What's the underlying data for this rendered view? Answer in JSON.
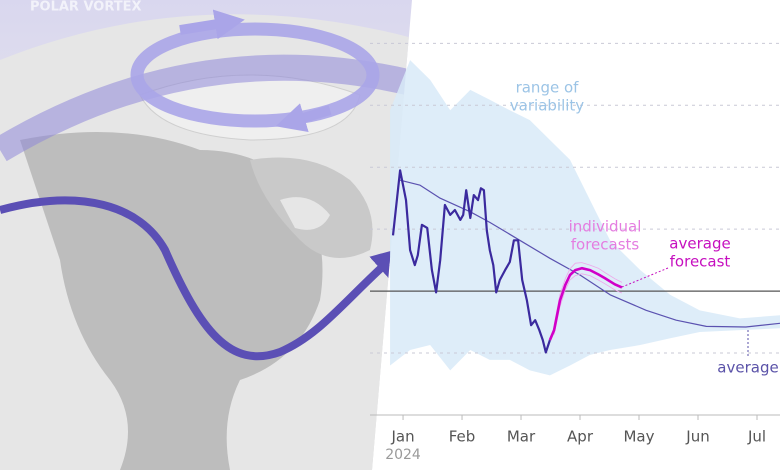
{
  "illustration": {
    "label": "POLAR VORTEX"
  },
  "chart_data": {
    "type": "line",
    "xlim": [
      -0.56,
      6.39
    ],
    "ylim": [
      -2.0,
      4.7
    ],
    "xticks": [
      {
        "value": 0,
        "label": "Jan"
      },
      {
        "value": 1,
        "label": "Feb"
      },
      {
        "value": 2,
        "label": "Mar"
      },
      {
        "value": 3,
        "label": "Apr"
      },
      {
        "value": 4,
        "label": "May"
      },
      {
        "value": 5,
        "label": "Jun"
      },
      {
        "value": 6,
        "label": "Jul"
      }
    ],
    "x_sublabel": "2024",
    "yticks": [
      -1,
      0,
      1,
      2,
      3,
      4
    ],
    "grid": true,
    "baseline": 0,
    "band": {
      "color": "#d8eaf8",
      "x": [
        -0.22,
        0.12,
        0.46,
        0.8,
        1.14,
        1.47,
        1.81,
        2.15,
        2.49,
        2.83,
        3.17,
        3.51,
        4.02,
        4.53,
        5.03,
        5.71,
        6.39
      ],
      "upper": [
        2.92,
        3.73,
        3.41,
        2.92,
        3.25,
        3.09,
        2.92,
        2.76,
        2.44,
        2.12,
        1.47,
        0.82,
        0.34,
        -0.06,
        -0.31,
        -0.44,
        -0.39
      ],
      "lower": [
        -1.2,
        -0.95,
        -0.87,
        -1.28,
        -0.95,
        -1.11,
        -1.11,
        -1.28,
        -1.36,
        -1.2,
        -1.03,
        -0.95,
        -0.87,
        -0.76,
        -0.66,
        -0.63,
        -0.6
      ]
    },
    "series": [
      {
        "color": "#5b52b0",
        "x": [
          -0.05,
          0.29,
          0.63,
          1.14,
          1.47,
          1.98,
          2.49,
          3.0,
          3.51,
          4.12,
          4.63,
          5.14,
          5.81,
          6.39
        ],
        "values": [
          1.79,
          1.71,
          1.5,
          1.28,
          1.11,
          0.82,
          0.53,
          0.26,
          -0.06,
          -0.31,
          -0.47,
          -0.57,
          -0.58,
          -0.52
        ]
      },
      {
        "color": "#eea6ea",
        "x": [
          2.56,
          2.66,
          2.75,
          2.83,
          2.92,
          3.03,
          3.17,
          3.31,
          3.42,
          3.59,
          3.71
        ],
        "values": [
          -0.55,
          -0.05,
          0.2,
          0.36,
          0.45,
          0.46,
          0.42,
          0.37,
          0.3,
          0.2,
          0.14
        ]
      },
      {
        "color": "#eea6ea",
        "x": [
          2.56,
          2.66,
          2.75,
          2.83,
          2.92,
          3.03,
          3.17,
          3.31,
          3.42,
          3.59,
          3.71
        ],
        "values": [
          -0.7,
          -0.25,
          0.02,
          0.18,
          0.25,
          0.28,
          0.25,
          0.18,
          0.12,
          0.02,
          -0.03
        ]
      },
      {
        "color": "#3b2a9e",
        "x": [
          -0.17,
          -0.05,
          0.05,
          0.12,
          0.2,
          0.25,
          0.32,
          0.41,
          0.49,
          0.56,
          0.63,
          0.71,
          0.8,
          0.88,
          0.97,
          1.02,
          1.07,
          1.14,
          1.2,
          1.27,
          1.32,
          1.37,
          1.42,
          1.47,
          1.53,
          1.58,
          1.64,
          1.73,
          1.81,
          1.88,
          1.95,
          2.02,
          2.1,
          2.17,
          2.24,
          2.31,
          2.37,
          2.42,
          2.49
        ],
        "values": [
          0.9,
          1.95,
          1.47,
          0.66,
          0.42,
          0.58,
          1.07,
          1.02,
          0.34,
          -0.02,
          0.5,
          1.39,
          1.23,
          1.31,
          1.15,
          1.23,
          1.63,
          1.18,
          1.55,
          1.47,
          1.66,
          1.63,
          0.98,
          0.66,
          0.42,
          -0.02,
          0.18,
          0.34,
          0.47,
          0.82,
          0.82,
          0.18,
          -0.15,
          -0.55,
          -0.47,
          -0.63,
          -0.79,
          -0.99,
          -0.79
        ]
      },
      {
        "color": "#d100c8",
        "x": [
          2.49,
          2.56,
          2.66,
          2.75,
          2.83,
          2.92,
          3.03,
          3.17,
          3.31,
          3.42,
          3.59,
          3.71
        ],
        "values": [
          -0.79,
          -0.63,
          -0.15,
          0.1,
          0.26,
          0.34,
          0.37,
          0.34,
          0.27,
          0.21,
          0.11,
          0.06
        ]
      }
    ],
    "annotations": [
      {
        "lines": [
          "range of",
          "variability"
        ],
        "color": "#9cc4e6"
      },
      {
        "lines": [
          "individual",
          "forecasts"
        ],
        "color": "#e47de0"
      },
      {
        "lines": [
          "average",
          "forecast"
        ],
        "color": "#c60fbf"
      },
      {
        "lines": [
          "average"
        ],
        "color": "#5a52a8"
      }
    ]
  }
}
